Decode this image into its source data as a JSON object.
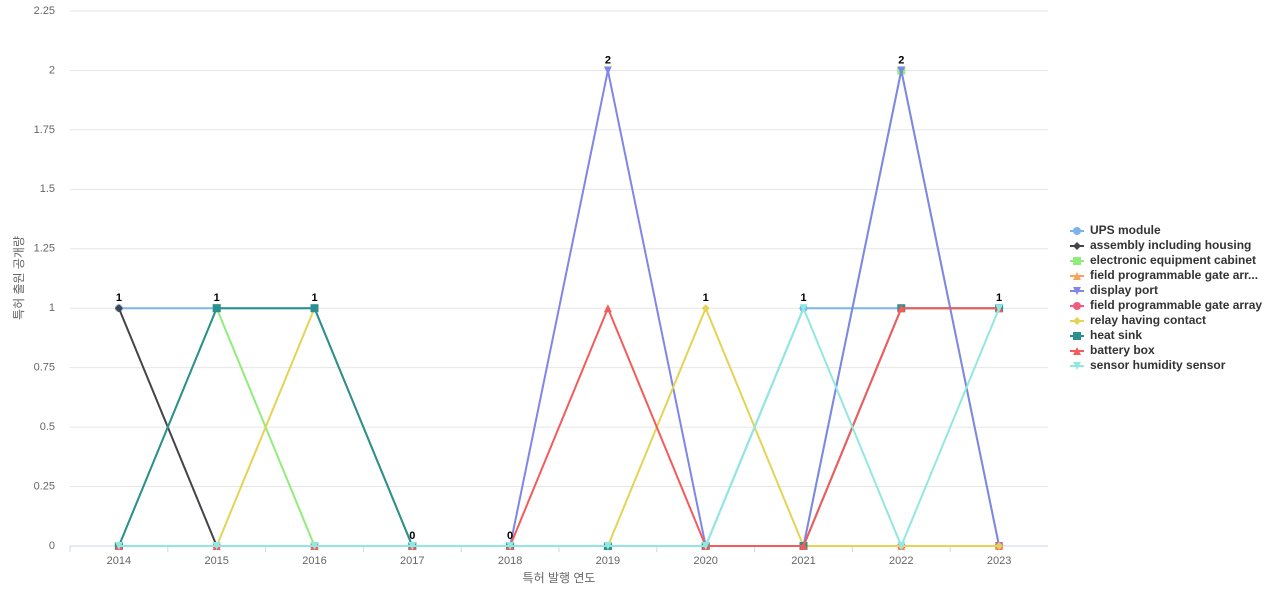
{
  "chart_data": {
    "type": "line",
    "x_label": "특허 발행 연도",
    "y_label": "특허 출원 공개량",
    "categories": [
      "2014",
      "2015",
      "2016",
      "2017",
      "2018",
      "2019",
      "2020",
      "2021",
      "2022",
      "2023"
    ],
    "ylim": [
      0,
      2.25
    ],
    "yticks": [
      0,
      0.25,
      0.5,
      0.75,
      1,
      1.25,
      1.5,
      1.75,
      2,
      2.25
    ],
    "grid": true,
    "series": [
      {
        "name": "UPS module",
        "color": "#7cb5ec",
        "values": [
          1,
          1,
          1,
          0,
          0,
          0,
          0,
          1,
          1,
          1
        ]
      },
      {
        "name": "assembly including housing",
        "color": "#434348",
        "values": [
          1,
          0,
          0,
          0,
          0,
          0,
          0,
          0,
          0,
          0
        ]
      },
      {
        "name": "electronic equipment cabinet",
        "color": "#90ed7d",
        "values": [
          0,
          1,
          0,
          0,
          0,
          0,
          0,
          0,
          2,
          0
        ]
      },
      {
        "name": "field programmable gate arr...",
        "color": "#f7a35c",
        "values": [
          0,
          0,
          0,
          0,
          0,
          0,
          0,
          0,
          0,
          0
        ]
      },
      {
        "name": "display port",
        "color": "#8085e9",
        "values": [
          0,
          0,
          0,
          0,
          0,
          2,
          0,
          0,
          2,
          0
        ]
      },
      {
        "name": "field programmable gate array",
        "color": "#f15c80",
        "values": [
          0,
          0,
          0,
          0,
          0,
          0,
          0,
          0,
          0,
          0
        ]
      },
      {
        "name": "relay having contact",
        "color": "#e4d354",
        "values": [
          0,
          0,
          1,
          0,
          0,
          0,
          1,
          0,
          0,
          0
        ]
      },
      {
        "name": "heat sink",
        "color": "#2b908f",
        "values": [
          0,
          1,
          1,
          0,
          0,
          0,
          0,
          0,
          1,
          1
        ]
      },
      {
        "name": "battery box",
        "color": "#f45b5b",
        "values": [
          0,
          0,
          0,
          0,
          0,
          1,
          0,
          0,
          1,
          1
        ]
      },
      {
        "name": "sensor humidity sensor",
        "color": "#91e8e1",
        "values": [
          0,
          0,
          0,
          0,
          0,
          0,
          0,
          1,
          0,
          1
        ]
      }
    ]
  }
}
